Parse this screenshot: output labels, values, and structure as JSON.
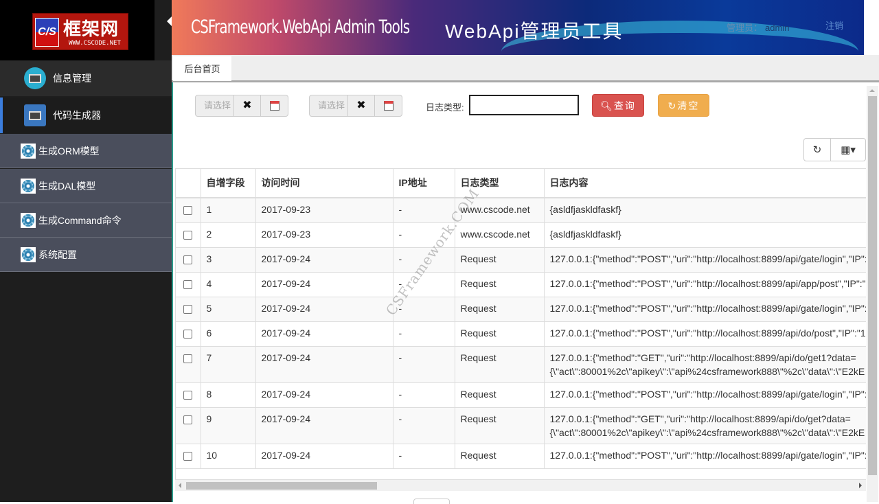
{
  "logo": {
    "cs": "C/S",
    "name": "框架网",
    "url": "WWW.CSCODE.NET"
  },
  "header": {
    "title_en": "CSFramework.WebApi Admin Tools",
    "title_cn": "WebApi管理员工具",
    "admin_label": "管理员：",
    "admin_name": "admin",
    "logout": "注销"
  },
  "sidebar": {
    "menus": [
      {
        "label": "信息管理",
        "icon": "monitor-icon"
      },
      {
        "label": "代码生成器",
        "icon": "code-generator-icon",
        "active": true
      }
    ],
    "items": [
      {
        "label": "生成ORM模型",
        "icon": "gear-icon"
      },
      {
        "label": "生成DAL模型",
        "icon": "gear-icon"
      },
      {
        "label": "生成Command命令",
        "icon": "gear-icon"
      },
      {
        "label": "系统配置",
        "icon": "gear-icon"
      }
    ]
  },
  "tabs": [
    {
      "label": "后台首页"
    }
  ],
  "filters": {
    "date_start_placeholder": "请选择",
    "date_end_placeholder": "请选择",
    "log_type_label": "日志类型:",
    "log_type_value": "",
    "query": "查询",
    "clear": "清空"
  },
  "colors": {
    "query": "#d9534f",
    "clear": "#f0ad4e",
    "sidebar_sub": "#4a4e5c",
    "active_indicator": "#3b7ddd"
  },
  "table": {
    "columns": [
      "自增字段",
      "访问时间",
      "IP地址",
      "日志类型",
      "日志内容"
    ],
    "rows": [
      [
        "1",
        "2017-09-23",
        "-",
        "www.cscode.net",
        "{asldfjaskldfaskf}"
      ],
      [
        "2",
        "2017-09-23",
        "-",
        "www.cscode.net",
        "{asldfjaskldfaskf}"
      ],
      [
        "3",
        "2017-09-24",
        "-",
        "Request",
        "127.0.0.1:{\"method\":\"POST\",\"uri\":\"http://localhost:8899/api/gate/login\",\"IP\":"
      ],
      [
        "4",
        "2017-09-24",
        "-",
        "Request",
        "127.0.0.1:{\"method\":\"POST\",\"uri\":\"http://localhost:8899/api/app/post\",\"IP\":\""
      ],
      [
        "5",
        "2017-09-24",
        "-",
        "Request",
        "127.0.0.1:{\"method\":\"POST\",\"uri\":\"http://localhost:8899/api/gate/login\",\"IP\":"
      ],
      [
        "6",
        "2017-09-24",
        "-",
        "Request",
        "127.0.0.1:{\"method\":\"POST\",\"uri\":\"http://localhost:8899/api/do/post\",\"IP\":\"1"
      ],
      [
        "7",
        "2017-09-24",
        "-",
        "Request",
        "127.0.0.1:{\"method\":\"GET\",\"uri\":\"http://localhost:8899/api/do/get1?data=\n{\\\"act\\\":80001%2c\\\"apikey\\\":\\\"api%24csframework888\\\"%2c\\\"data\\\":\\\"E2kE"
      ],
      [
        "8",
        "2017-09-24",
        "-",
        "Request",
        "127.0.0.1:{\"method\":\"POST\",\"uri\":\"http://localhost:8899/api/gate/login\",\"IP\":"
      ],
      [
        "9",
        "2017-09-24",
        "-",
        "Request",
        "127.0.0.1:{\"method\":\"GET\",\"uri\":\"http://localhost:8899/api/do/get?data=\n{\\\"act\\\":80001%2c\\\"apikey\\\":\\\"api%24csframework888\\\"%2c\\\"data\\\":\\\"E2kE"
      ],
      [
        "10",
        "2017-09-24",
        "-",
        "Request",
        "127.0.0.1:{\"method\":\"POST\",\"uri\":\"http://localhost:8899/api/gate/login\",\"IP\":"
      ]
    ]
  },
  "watermark": "CSFramework.COM"
}
